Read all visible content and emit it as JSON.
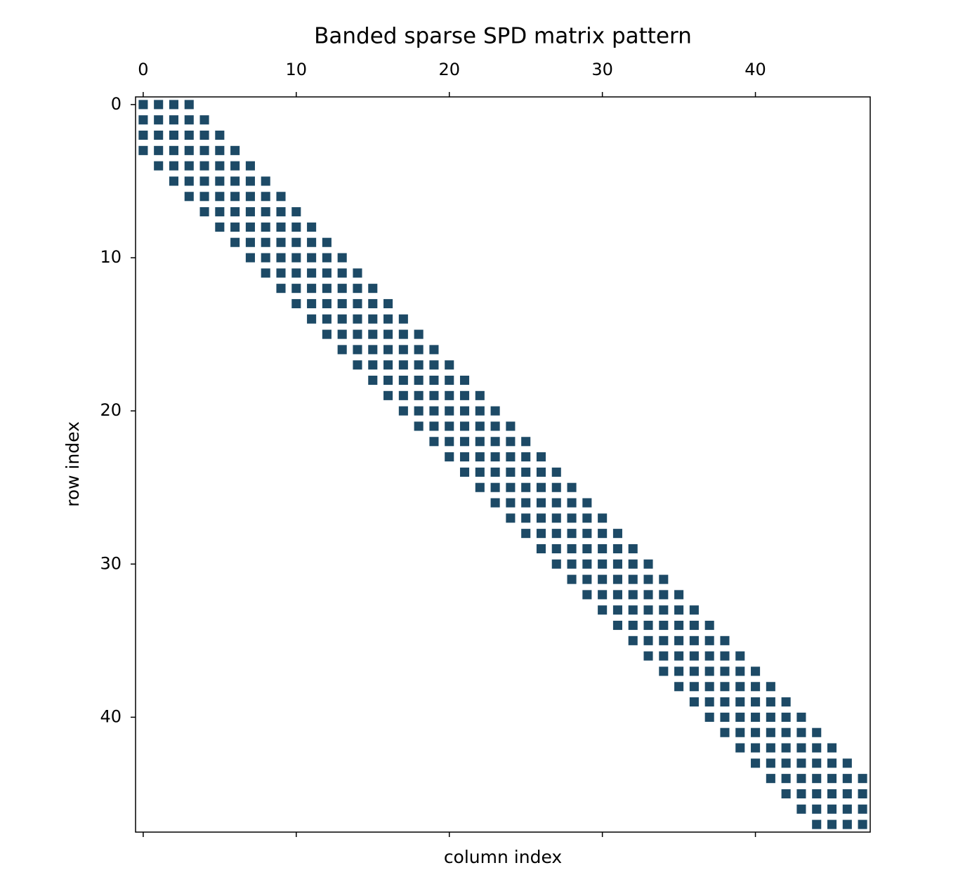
{
  "chart_data": {
    "type": "spy",
    "title": "Banded sparse SPD matrix pattern",
    "xlabel": "column index",
    "ylabel": "row index",
    "color": "#1d4a66",
    "xlim": [
      -0.5,
      47.5
    ],
    "ylim": [
      47.5,
      -0.5
    ],
    "xticks": [
      0,
      10,
      20,
      30,
      40
    ],
    "yticks": [
      0,
      10,
      20,
      30,
      40
    ],
    "x": [
      0,
      1,
      2,
      3,
      0,
      1,
      2,
      3,
      4,
      0,
      1,
      2,
      3,
      4,
      5,
      0,
      1,
      2,
      3,
      4,
      5,
      6,
      1,
      2,
      3,
      4,
      5,
      6,
      7,
      2,
      3,
      4,
      5,
      6,
      7,
      8,
      3,
      4,
      5,
      6,
      7,
      8,
      9,
      4,
      5,
      6,
      7,
      8,
      9,
      10,
      5,
      6,
      7,
      8,
      9,
      10,
      11,
      6,
      7,
      8,
      9,
      10,
      11,
      12,
      7,
      8,
      9,
      10,
      11,
      12,
      13,
      8,
      9,
      10,
      11,
      12,
      13,
      14,
      9,
      10,
      11,
      12,
      13,
      14,
      15,
      10,
      11,
      12,
      13,
      14,
      15,
      16,
      11,
      12,
      13,
      14,
      15,
      16,
      17,
      12,
      13,
      14,
      15,
      16,
      17,
      18,
      13,
      14,
      15,
      16,
      17,
      18,
      19,
      14,
      15,
      16,
      17,
      18,
      19,
      20,
      15,
      16,
      17,
      18,
      19,
      20,
      21,
      16,
      17,
      18,
      19,
      20,
      21,
      22,
      17,
      18,
      19,
      20,
      21,
      22,
      23,
      18,
      19,
      20,
      21,
      22,
      23,
      24,
      19,
      20,
      21,
      22,
      23,
      24,
      25,
      20,
      21,
      22,
      23,
      24,
      25,
      26,
      21,
      22,
      23,
      24,
      25,
      26,
      27,
      22,
      23,
      24,
      25,
      26,
      27,
      28,
      23,
      24,
      25,
      26,
      27,
      28,
      29,
      24,
      25,
      26,
      27,
      28,
      29,
      30,
      25,
      26,
      27,
      28,
      29,
      30,
      31,
      26,
      27,
      28,
      29,
      30,
      31,
      32,
      27,
      28,
      29,
      30,
      31,
      32,
      33,
      28,
      29,
      30,
      31,
      32,
      33,
      34,
      29,
      30,
      31,
      32,
      33,
      34,
      35,
      30,
      31,
      32,
      33,
      34,
      35,
      36,
      31,
      32,
      33,
      34,
      35,
      36,
      37,
      32,
      33,
      34,
      35,
      36,
      37,
      38,
      33,
      34,
      35,
      36,
      37,
      38,
      39,
      34,
      35,
      36,
      37,
      38,
      39,
      40,
      35,
      36,
      37,
      38,
      39,
      40,
      41,
      36,
      37,
      38,
      39,
      40,
      41,
      42,
      37,
      38,
      39,
      40,
      41,
      42,
      43,
      38,
      39,
      40,
      41,
      42,
      43,
      44,
      39,
      40,
      41,
      42,
      43,
      44,
      45,
      40,
      41,
      42,
      43,
      44,
      45,
      46,
      41,
      42,
      43,
      44,
      45,
      46,
      47,
      42,
      43,
      44,
      45,
      46,
      47,
      43,
      44,
      45,
      46,
      47,
      44,
      45,
      46,
      47
    ],
    "y": [
      0,
      0,
      0,
      0,
      1,
      1,
      1,
      1,
      1,
      2,
      2,
      2,
      2,
      2,
      2,
      3,
      3,
      3,
      3,
      3,
      3,
      3,
      4,
      4,
      4,
      4,
      4,
      4,
      4,
      5,
      5,
      5,
      5,
      5,
      5,
      5,
      6,
      6,
      6,
      6,
      6,
      6,
      6,
      7,
      7,
      7,
      7,
      7,
      7,
      7,
      8,
      8,
      8,
      8,
      8,
      8,
      8,
      9,
      9,
      9,
      9,
      9,
      9,
      9,
      10,
      10,
      10,
      10,
      10,
      10,
      10,
      11,
      11,
      11,
      11,
      11,
      11,
      11,
      12,
      12,
      12,
      12,
      12,
      12,
      12,
      13,
      13,
      13,
      13,
      13,
      13,
      13,
      14,
      14,
      14,
      14,
      14,
      14,
      14,
      15,
      15,
      15,
      15,
      15,
      15,
      15,
      16,
      16,
      16,
      16,
      16,
      16,
      16,
      17,
      17,
      17,
      17,
      17,
      17,
      17,
      18,
      18,
      18,
      18,
      18,
      18,
      18,
      19,
      19,
      19,
      19,
      19,
      19,
      19,
      20,
      20,
      20,
      20,
      20,
      20,
      20,
      21,
      21,
      21,
      21,
      21,
      21,
      21,
      22,
      22,
      22,
      22,
      22,
      22,
      22,
      23,
      23,
      23,
      23,
      23,
      23,
      23,
      24,
      24,
      24,
      24,
      24,
      24,
      24,
      25,
      25,
      25,
      25,
      25,
      25,
      25,
      26,
      26,
      26,
      26,
      26,
      26,
      26,
      27,
      27,
      27,
      27,
      27,
      27,
      27,
      28,
      28,
      28,
      28,
      28,
      28,
      28,
      29,
      29,
      29,
      29,
      29,
      29,
      29,
      30,
      30,
      30,
      30,
      30,
      30,
      30,
      31,
      31,
      31,
      31,
      31,
      31,
      31,
      32,
      32,
      32,
      32,
      32,
      32,
      32,
      33,
      33,
      33,
      33,
      33,
      33,
      33,
      34,
      34,
      34,
      34,
      34,
      34,
      34,
      35,
      35,
      35,
      35,
      35,
      35,
      35,
      36,
      36,
      36,
      36,
      36,
      36,
      36,
      37,
      37,
      37,
      37,
      37,
      37,
      37,
      38,
      38,
      38,
      38,
      38,
      38,
      38,
      39,
      39,
      39,
      39,
      39,
      39,
      39,
      40,
      40,
      40,
      40,
      40,
      40,
      40,
      41,
      41,
      41,
      41,
      41,
      41,
      41,
      42,
      42,
      42,
      42,
      42,
      42,
      42,
      43,
      43,
      43,
      43,
      43,
      43,
      43,
      44,
      44,
      44,
      44,
      44,
      44,
      44,
      45,
      45,
      45,
      45,
      45,
      45,
      46,
      46,
      46,
      46,
      46,
      47,
      47,
      47,
      47
    ]
  }
}
